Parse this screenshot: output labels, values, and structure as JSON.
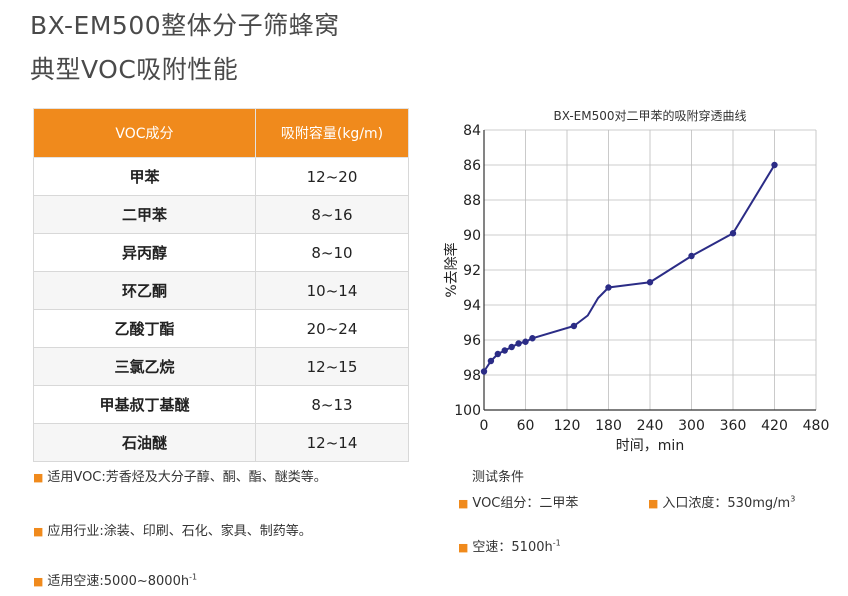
{
  "title": {
    "line1": "BX-EM500整体分子筛蜂窝",
    "line2": "典型VOC吸附性能"
  },
  "table": {
    "headers": [
      "VOC成分",
      "吸附容量(kg/m)"
    ],
    "rows": [
      {
        "name": "甲苯",
        "value": "12~20"
      },
      {
        "name": "二甲苯",
        "value": "8~16"
      },
      {
        "name": "异丙醇",
        "value": "8~10"
      },
      {
        "name": "环乙酮",
        "value": "10~14"
      },
      {
        "name": "乙酸丁酯",
        "value": "20~24"
      },
      {
        "name": "三氯乙烷",
        "value": "12~15"
      },
      {
        "name": "甲基叔丁基醚",
        "value": "8~13"
      },
      {
        "name": "石油醚",
        "value": "12~14"
      }
    ]
  },
  "notes": {
    "voc": "适用VOC:芳香烃及大分子醇、酮、酯、醚类等。",
    "industry": "应用行业:涂装、印刷、石化、家具、制药等。",
    "speed": "适用空速:5000~8000h",
    "speed_sup": "-1"
  },
  "test": {
    "title": "测试条件",
    "voc_label": "VOC组分：二甲苯",
    "conc_label": "入口浓度：530mg/m",
    "conc_sup": "3",
    "speed_label": "空速：5100h",
    "speed_sup": "-1"
  },
  "colors": {
    "accent": "#f08a1c",
    "line": "#2b2c86"
  },
  "chart_data": {
    "type": "line",
    "title": "BX-EM500对二甲苯的吸附穿透曲线",
    "xlabel": "时间，min",
    "ylabel": "%去除率",
    "xlim": [
      0,
      480
    ],
    "ylim": [
      100,
      84
    ],
    "xticks": [
      0,
      60,
      120,
      180,
      240,
      300,
      360,
      420,
      480
    ],
    "yticks": [
      84,
      86,
      88,
      90,
      92,
      94,
      96,
      98,
      100
    ],
    "grid": true,
    "series": [
      {
        "line_x": [
          0,
          10,
          20,
          30,
          40,
          50,
          60,
          70,
          130,
          150,
          165,
          180,
          240,
          300,
          360,
          420
        ],
        "line_y": [
          97.8,
          97.2,
          96.8,
          96.6,
          96.4,
          96.2,
          96.1,
          95.9,
          95.2,
          94.6,
          93.6,
          93.0,
          92.7,
          91.2,
          89.9,
          86.0
        ],
        "x": [
          0,
          10,
          20,
          30,
          40,
          50,
          60,
          70,
          130,
          180,
          240,
          300,
          360,
          420
        ],
        "y": [
          97.8,
          97.2,
          96.8,
          96.6,
          96.4,
          96.2,
          96.1,
          95.9,
          95.2,
          93.0,
          92.7,
          91.2,
          89.9,
          86.0
        ]
      }
    ]
  }
}
